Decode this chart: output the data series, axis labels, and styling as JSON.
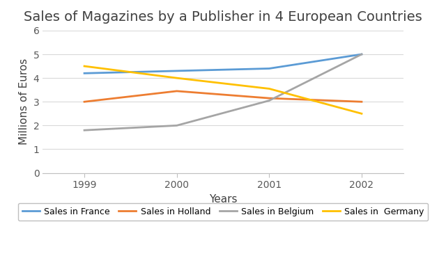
{
  "title": "Sales of Magazines by a Publisher in 4 European Countries",
  "xlabel": "Years",
  "ylabel": "Millions of Euros",
  "years": [
    1999,
    2000,
    2001,
    2002
  ],
  "series": [
    {
      "label": "Sales in France",
      "values": [
        4.2,
        4.3,
        4.4,
        5.0
      ],
      "color": "#5B9BD5",
      "marker": null
    },
    {
      "label": "Sales in Holland",
      "values": [
        3.0,
        3.45,
        3.15,
        3.0
      ],
      "color": "#ED7D31",
      "marker": null
    },
    {
      "label": "Sales in Belgium",
      "values": [
        1.8,
        2.0,
        3.05,
        5.0
      ],
      "color": "#A5A5A5",
      "marker": null
    },
    {
      "label": "Sales in  Germany",
      "values": [
        4.5,
        4.0,
        3.55,
        2.5
      ],
      "color": "#FFC000",
      "marker": null
    }
  ],
  "ylim": [
    0,
    6
  ],
  "yticks": [
    0,
    1,
    2,
    3,
    4,
    5,
    6
  ],
  "background_color": "#FFFFFF",
  "grid_color": "#D9D9D9",
  "title_fontsize": 14,
  "axis_label_fontsize": 11,
  "tick_fontsize": 10,
  "legend_fontsize": 9,
  "line_width": 2.0
}
